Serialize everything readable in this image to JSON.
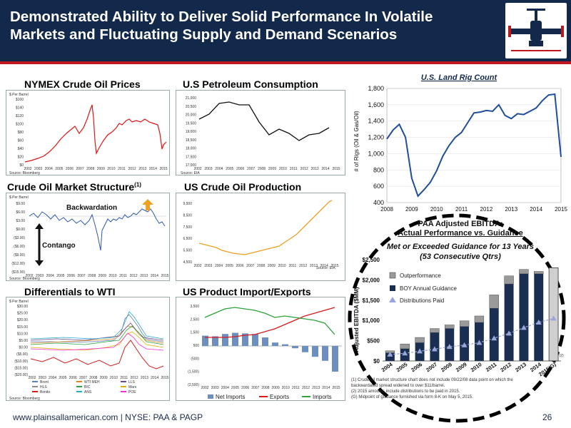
{
  "header": {
    "title_line1": "Demonstrated Ability to Deliver Solid Performance In Volatile",
    "title_line2": "Markets and Fluctuating Supply and Demand Scenarios"
  },
  "panels": {
    "nymex": "NYMEX Crude Oil Prices",
    "consumption": "U.S Petroleum Consumption",
    "structure": "Crude Oil Market Structure",
    "structure_sup": "(1)",
    "production": "US Crude Oil Production",
    "differentials": "Differentials to WTI",
    "imports_exports": "US Product Import/Exports"
  },
  "nymex": {
    "unit": "$ Per Barrel",
    "yticks": [
      "$160",
      "$140",
      "$120",
      "$100",
      "$80",
      "$60",
      "$40",
      "$20",
      "$0"
    ],
    "xticks": [
      "2002",
      "2003",
      "2004",
      "2005",
      "2006",
      "2007",
      "2008",
      "2009",
      "2010",
      "2011",
      "2012",
      "2013",
      "2014",
      "2015"
    ],
    "source": "Source: Bloomberg"
  },
  "consumption": {
    "yticks": [
      "21,000",
      "20,500",
      "20,000",
      "19,500",
      "19,000",
      "18,500",
      "18,000",
      "17,500",
      "17,000"
    ],
    "xticks": [
      "2002",
      "2003",
      "2004",
      "2005",
      "2006",
      "2007",
      "2008",
      "2009",
      "2010",
      "2011",
      "2012",
      "2013",
      "2014",
      "2015"
    ],
    "source": "Source: EIA"
  },
  "structure": {
    "unit": "$ Per Barrel",
    "yticks": [
      "$9.00",
      "$6.00",
      "$3.00",
      "$0.00",
      "($3.00)",
      "($6.00)",
      "($9.00)",
      "($12.00)",
      "($15.00)"
    ],
    "xticks": [
      "2002",
      "2003",
      "2004",
      "2005",
      "2006",
      "2007",
      "2008",
      "2009",
      "2010",
      "2011",
      "2012",
      "2013",
      "2014",
      "2015"
    ],
    "label_backwardation": "Backwardation",
    "label_contango": "Contango",
    "source": "Source: Bloomberg"
  },
  "production": {
    "yticks": [
      "9,500",
      "8,500",
      "7,500",
      "6,500",
      "5,500",
      "4,500"
    ],
    "xticks": [
      "2002",
      "2003",
      "2004",
      "2005",
      "2006",
      "2007",
      "2008",
      "2009",
      "2010",
      "2011",
      "2012",
      "2013",
      "2014",
      "2015"
    ],
    "source": "Source: EIA"
  },
  "differentials": {
    "unit": "$ Per Barrel",
    "yticks": [
      "$30.00",
      "$25.00",
      "$20.00",
      "$15.00",
      "$10.00",
      "$5.00",
      "$0.00",
      "($5.00)",
      "($10.00)",
      "($15.00)",
      "($20.00)"
    ],
    "xticks": [
      "2002",
      "2003",
      "2004",
      "2005",
      "2006",
      "2007",
      "2008",
      "2009",
      "2010",
      "2011",
      "2012",
      "2013",
      "2014",
      "2015"
    ],
    "legend": [
      "Brent",
      "WTI MEH",
      "LLS",
      "HLS",
      "BIC",
      "Mars",
      "Bonito",
      "ANS",
      "POE"
    ],
    "legend_colors": [
      "#5f7fb8",
      "#e08a1e",
      "#6b4a8a",
      "#8a8a8a",
      "#2aa33a",
      "#d7b000",
      "#d81c1c",
      "#25a9c9",
      "#ff2ad4"
    ],
    "source": "Source: Bloomberg"
  },
  "imports_exports": {
    "yticks": [
      "3,500",
      "2,500",
      "1,500",
      "500",
      "(500)",
      "(1,500)",
      "(2,500)"
    ],
    "xticks": [
      "2002",
      "2003",
      "2004",
      "2005",
      "2006",
      "2007",
      "2008",
      "2009",
      "2010",
      "2011",
      "2012",
      "2013",
      "2014",
      "2015"
    ],
    "legend": [
      "Net Imports",
      "Exports",
      "Imports"
    ],
    "legend_colors": [
      "#6d8fbf",
      "#d81c1c",
      "#2aa33a"
    ]
  },
  "rig_count": {
    "title": "U.S. Land Rig Count",
    "ylabel": "# of Rigs (Oil & Gas/Oil)"
  },
  "ebitda": {
    "title_line1": "PAA Adjusted EBITDA:",
    "title_line2": "Actual Performance vs. Guidance",
    "sub_line1": "Met or Exceeded Guidance for 13 Years",
    "sub_line2": "(53 Consecutive Qtrs)",
    "ylabel": "Adjusted EBITDA ($MM)",
    "legend": [
      "Outperformance",
      "BOY Annual Guidance",
      "Distributions Paid"
    ],
    "last_label_sup": "(2)",
    "last_label": "2015(G)"
  },
  "notes": {
    "line1": "(1) Crude oil market structure chart does not include 09/22/08 data point on which the",
    "line2": "backwardated spread widened to over $11/barrel.",
    "line3": "(2) 2015 amounts include distributions to be paid in 2015.",
    "line4": "(G) Midpoint of guidance furnished via form 8-K on May 5, 2015."
  },
  "footer": {
    "text": "www.plainsallamerican.com | NYSE: PAA & PAGP",
    "page": "26"
  },
  "colors": {
    "header_bg": "#13294b",
    "accent_red": "#c0171e",
    "nymex_line": "#e01414",
    "structure_line": "#2a5aa8",
    "production_line": "#f0a020",
    "bar_dark": "#1a2e52",
    "bar_light": "#9a9a9a"
  },
  "chart_data": [
    {
      "type": "line",
      "title": "U.S. Land Rig Count",
      "xlabel": "",
      "ylabel": "# of Rigs (Oil & Gas/Oil)",
      "x": [
        2008.0,
        2008.25,
        2008.5,
        2008.75,
        2009.0,
        2009.25,
        2009.5,
        2009.75,
        2010.0,
        2010.25,
        2010.5,
        2010.75,
        2011.0,
        2011.25,
        2011.5,
        2011.75,
        2012.0,
        2012.25,
        2012.5,
        2012.75,
        2013.0,
        2013.25,
        2013.5,
        2013.75,
        2014.0,
        2014.25,
        2014.5,
        2014.75,
        2015.0
      ],
      "values": [
        1180,
        1290,
        1360,
        1200,
        700,
        480,
        560,
        650,
        790,
        970,
        1100,
        1200,
        1260,
        1380,
        1500,
        1510,
        1530,
        1520,
        1600,
        1470,
        1430,
        1490,
        1480,
        1520,
        1560,
        1650,
        1720,
        1730,
        960
      ],
      "xlim": [
        2008,
        2015
      ],
      "ylim": [
        400,
        1800
      ],
      "xticks": [
        "2008",
        "2009",
        "2010",
        "2011",
        "2012",
        "2013",
        "2014",
        "2015"
      ],
      "yticks": [
        "400",
        "600",
        "800",
        "1,000",
        "1,200",
        "1,400",
        "1,600",
        "1,800"
      ]
    },
    {
      "type": "bar",
      "title": "PAA Adjusted EBITDA: Actual Performance vs. Guidance",
      "ylabel": "Adjusted EBITDA ($MM)",
      "categories": [
        "2004",
        "2005",
        "2006",
        "2007",
        "2008",
        "2009",
        "2010",
        "2011",
        "2012",
        "2013",
        "2014",
        "2015(G)"
      ],
      "series": [
        {
          "name": "BOY Annual Guidance",
          "values": [
            200,
            300,
            450,
            700,
            800,
            850,
            950,
            1300,
            1900,
            2150,
            2150,
            2300
          ]
        },
        {
          "name": "Outperformance",
          "values": [
            50,
            120,
            130,
            100,
            90,
            140,
            160,
            330,
            200,
            110,
            60,
            0
          ]
        },
        {
          "name": "Distributions Paid",
          "values": [
            160,
            190,
            240,
            290,
            350,
            390,
            450,
            560,
            680,
            820,
            950,
            1050
          ]
        }
      ],
      "ylim": [
        0,
        2500
      ],
      "yticks": [
        "$0",
        "$500",
        "$1,000",
        "$1,500",
        "$2,000",
        "$2,500"
      ]
    }
  ]
}
